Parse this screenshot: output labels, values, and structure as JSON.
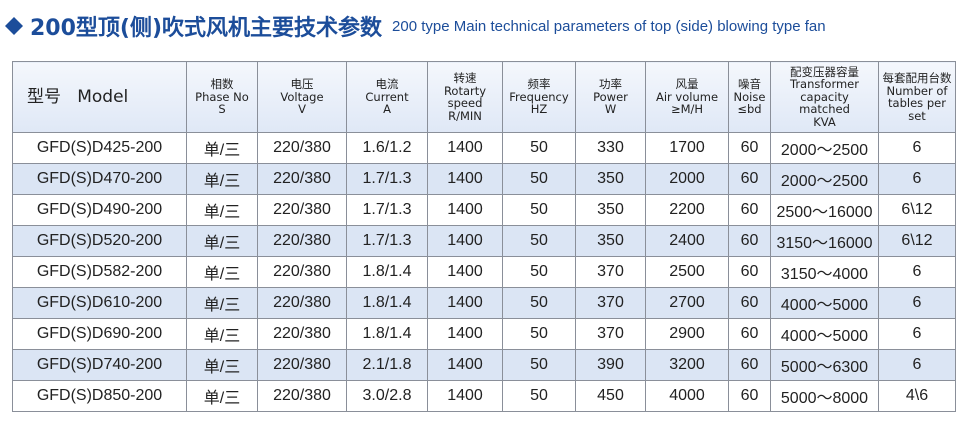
{
  "header": {
    "title": "200型顶(侧)吹式风机主要技术参数",
    "subtitle": "200 type Main technical parameters of top (side) blowing type fan"
  },
  "table": {
    "columns": [
      [
        "型号   Model"
      ],
      [
        "相数",
        "Phase No",
        "S"
      ],
      [
        "电压",
        "Voltage",
        "V"
      ],
      [
        "电流",
        "Current",
        "A"
      ],
      [
        "转速",
        "Rotarty",
        "speed",
        "R/MIN"
      ],
      [
        "频率",
        "Frequency",
        "HZ"
      ],
      [
        "功率",
        "Power",
        "W"
      ],
      [
        "风量",
        "Air volume",
        "≥M/H"
      ],
      [
        "噪音",
        "Noise",
        "≤bd"
      ],
      [
        "配变压器容量",
        "Transformer",
        "capacity",
        "matched",
        "KVA"
      ],
      [
        "每套配用台数",
        "Number of",
        "tables per",
        "set"
      ]
    ],
    "rows": [
      [
        "GFD(S)D425-200",
        "单/三",
        "220/380",
        "1.6/1.2",
        "1400",
        "50",
        "330",
        "1700",
        "60",
        "2000～2500",
        "6"
      ],
      [
        "GFD(S)D470-200",
        "单/三",
        "220/380",
        "1.7/1.3",
        "1400",
        "50",
        "350",
        "2000",
        "60",
        "2000～2500",
        "6"
      ],
      [
        "GFD(S)D490-200",
        "单/三",
        "220/380",
        "1.7/1.3",
        "1400",
        "50",
        "350",
        "2200",
        "60",
        "2500～16000",
        "6\\12"
      ],
      [
        "GFD(S)D520-200",
        "单/三",
        "220/380",
        "1.7/1.3",
        "1400",
        "50",
        "350",
        "2400",
        "60",
        "3150～16000",
        "6\\12"
      ],
      [
        "GFD(S)D582-200",
        "单/三",
        "220/380",
        "1.8/1.4",
        "1400",
        "50",
        "370",
        "2500",
        "60",
        "3150～4000",
        "6"
      ],
      [
        "GFD(S)D610-200",
        "单/三",
        "220/380",
        "1.8/1.4",
        "1400",
        "50",
        "370",
        "2700",
        "60",
        "4000～5000",
        "6"
      ],
      [
        "GFD(S)D690-200",
        "单/三",
        "220/380",
        "1.8/1.4",
        "1400",
        "50",
        "370",
        "2900",
        "60",
        "4000～5000",
        "6"
      ],
      [
        "GFD(S)D740-200",
        "单/三",
        "220/380",
        "2.1/1.8",
        "1400",
        "50",
        "390",
        "3200",
        "60",
        "5000～6300",
        "6"
      ],
      [
        "GFD(S)D850-200",
        "单/三",
        "220/380",
        "3.0/2.8",
        "1400",
        "50",
        "450",
        "4000",
        "60",
        "5000～8000",
        "4\\6"
      ]
    ]
  }
}
